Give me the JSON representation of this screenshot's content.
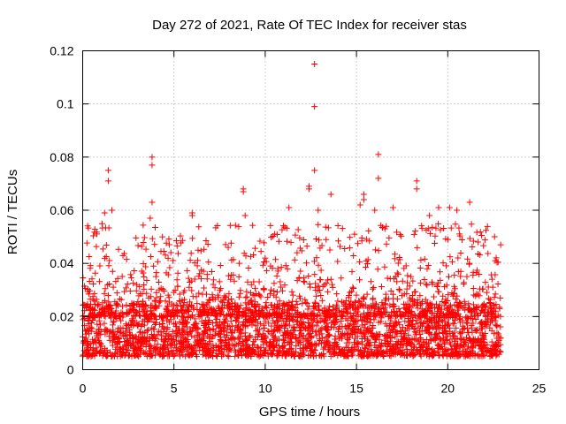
{
  "chart_data": {
    "type": "scatter",
    "title": "Day 272 of 2021, Rate Of TEC Index for receiver stas",
    "xlabel": "GPS time / hours",
    "ylabel": "ROTI / TECUs",
    "xlim": [
      0,
      25
    ],
    "ylim": [
      0,
      0.12
    ],
    "x_ticks": [
      0,
      5,
      10,
      15,
      20,
      25
    ],
    "x_tick_labels": [
      "0",
      "5",
      "10",
      "15",
      "20",
      "25"
    ],
    "y_ticks": [
      0,
      0.02,
      0.04,
      0.06,
      0.08,
      0.1,
      0.12
    ],
    "y_tick_labels": [
      "0",
      "0.02",
      "0.04",
      "0.06",
      "0.08",
      "0.1",
      "0.12"
    ],
    "grid": true,
    "marker": "plus",
    "color": "#ff0000",
    "data_extent_x": [
      0,
      22.9
    ],
    "baseline_band": [
      0.005,
      0.025
    ],
    "notable_points": [
      {
        "x": 12.7,
        "y": 0.115
      },
      {
        "x": 12.7,
        "y": 0.099
      },
      {
        "x": 3.8,
        "y": 0.08
      },
      {
        "x": 3.8,
        "y": 0.077
      },
      {
        "x": 16.2,
        "y": 0.081
      },
      {
        "x": 1.4,
        "y": 0.075
      },
      {
        "x": 1.4,
        "y": 0.071
      },
      {
        "x": 12.7,
        "y": 0.075
      },
      {
        "x": 16.2,
        "y": 0.072
      },
      {
        "x": 18.3,
        "y": 0.071
      },
      {
        "x": 18.3,
        "y": 0.068
      },
      {
        "x": 8.8,
        "y": 0.068
      },
      {
        "x": 8.8,
        "y": 0.067
      },
      {
        "x": 12.4,
        "y": 0.069
      },
      {
        "x": 12.4,
        "y": 0.068
      },
      {
        "x": 13.6,
        "y": 0.066
      },
      {
        "x": 15.4,
        "y": 0.066
      },
      {
        "x": 15.4,
        "y": 0.064
      },
      {
        "x": 3.8,
        "y": 0.063
      },
      {
        "x": 21.2,
        "y": 0.063
      },
      {
        "x": 1.6,
        "y": 0.06
      },
      {
        "x": 1.2,
        "y": 0.059
      },
      {
        "x": 6.0,
        "y": 0.059
      },
      {
        "x": 6.0,
        "y": 0.058
      },
      {
        "x": 11.3,
        "y": 0.061
      },
      {
        "x": 15.2,
        "y": 0.062
      },
      {
        "x": 16.0,
        "y": 0.06
      },
      {
        "x": 17.0,
        "y": 0.061
      },
      {
        "x": 19.5,
        "y": 0.061
      },
      {
        "x": 20.1,
        "y": 0.061
      },
      {
        "x": 20.5,
        "y": 0.06
      },
      {
        "x": 12.9,
        "y": 0.06
      },
      {
        "x": 8.9,
        "y": 0.058
      },
      {
        "x": 3.7,
        "y": 0.057
      },
      {
        "x": 19.0,
        "y": 0.058
      },
      {
        "x": 22.6,
        "y": 0.041
      }
    ]
  }
}
